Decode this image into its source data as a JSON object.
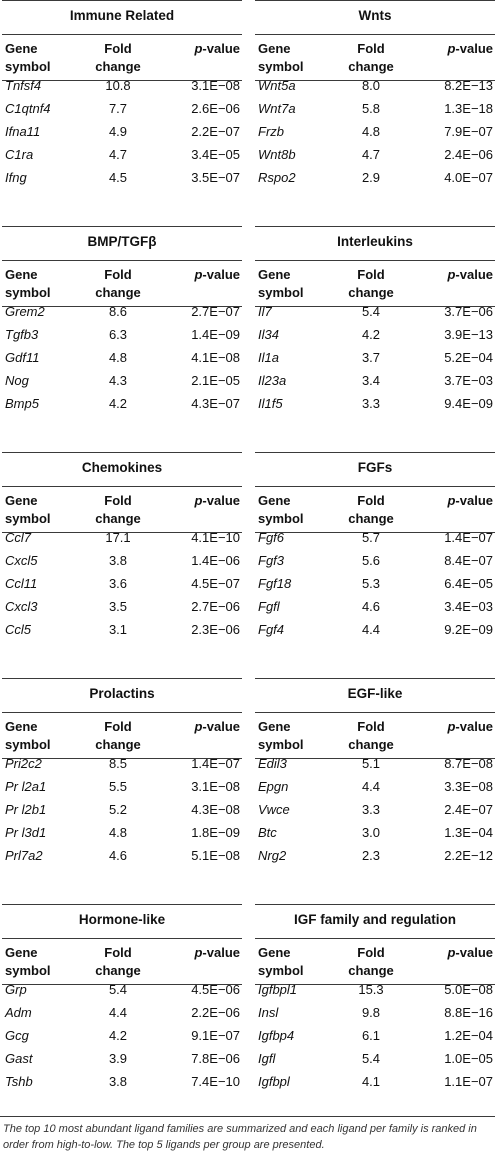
{
  "headers": {
    "gene": [
      "Gene",
      "symbol"
    ],
    "fold": [
      "Fold",
      "change"
    ],
    "p_italic": "p",
    "p_rest": "-value"
  },
  "panels": [
    {
      "title": "Immune Related",
      "rows": [
        {
          "gene": "Tnfsf4",
          "fold": "10.8",
          "p": "3.1E−08"
        },
        {
          "gene": "C1qtnf4",
          "fold": "7.7",
          "p": "2.6E−06"
        },
        {
          "gene": "Ifna11",
          "fold": "4.9",
          "p": "2.2E−07"
        },
        {
          "gene": "C1ra",
          "fold": "4.7",
          "p": "3.4E−05"
        },
        {
          "gene": "Ifng",
          "fold": "4.5",
          "p": "3.5E−07"
        }
      ]
    },
    {
      "title": "Wnts",
      "rows": [
        {
          "gene": "Wnt5a",
          "fold": "8.0",
          "p": "8.2E−13"
        },
        {
          "gene": "Wnt7a",
          "fold": "5.8",
          "p": "1.3E−18"
        },
        {
          "gene": "Frzb",
          "fold": "4.8",
          "p": "7.9E−07"
        },
        {
          "gene": "Wnt8b",
          "fold": "4.7",
          "p": "2.4E−06"
        },
        {
          "gene": "Rspo2",
          "fold": "2.9",
          "p": "4.0E−07"
        }
      ]
    },
    {
      "title": "BMP/TGFβ",
      "rows": [
        {
          "gene": "Grem2",
          "fold": "8.6",
          "p": "2.7E−07"
        },
        {
          "gene": "Tgfb3",
          "fold": "6.3",
          "p": "1.4E−09"
        },
        {
          "gene": "Gdf11",
          "fold": "4.8",
          "p": "4.1E−08"
        },
        {
          "gene": "Nog",
          "fold": "4.3",
          "p": "2.1E−05"
        },
        {
          "gene": "Bmp5",
          "fold": "4.2",
          "p": "4.3E−07"
        }
      ]
    },
    {
      "title": "Interleukins",
      "rows": [
        {
          "gene": "Il7",
          "fold": "5.4",
          "p": "3.7E−06"
        },
        {
          "gene": "Il34",
          "fold": "4.2",
          "p": "3.9E−13"
        },
        {
          "gene": "Il1a",
          "fold": "3.7",
          "p": "5.2E−04"
        },
        {
          "gene": "Il23a",
          "fold": "3.4",
          "p": "3.7E−03"
        },
        {
          "gene": "Il1f5",
          "fold": "3.3",
          "p": "9.4E−09"
        }
      ]
    },
    {
      "title": "Chemokines",
      "rows": [
        {
          "gene": "Ccl7",
          "fold": "17.1",
          "p": "4.1E−10"
        },
        {
          "gene": "Cxcl5",
          "fold": "3.8",
          "p": "1.4E−06"
        },
        {
          "gene": "Ccl11",
          "fold": "3.6",
          "p": "4.5E−07"
        },
        {
          "gene": "Cxcl3",
          "fold": "3.5",
          "p": "2.7E−06"
        },
        {
          "gene": "Ccl5",
          "fold": "3.1",
          "p": "2.3E−06"
        }
      ]
    },
    {
      "title": "FGFs",
      "rows": [
        {
          "gene": "Fgf6",
          "fold": "5.7",
          "p": "1.4E−07"
        },
        {
          "gene": "Fgf3",
          "fold": "5.6",
          "p": "8.4E−07"
        },
        {
          "gene": "Fgf18",
          "fold": "5.3",
          "p": "6.4E−05"
        },
        {
          "gene": "Fgfl",
          "fold": "4.6",
          "p": "3.4E−03"
        },
        {
          "gene": "Fgf4",
          "fold": "4.4",
          "p": "9.2E−09"
        }
      ]
    },
    {
      "title": "Prolactins",
      "rows": [
        {
          "gene": "Pri2c2",
          "fold": "8.5",
          "p": "1.4E−07"
        },
        {
          "gene": "Pr l2a1",
          "fold": "5.5",
          "p": "3.1E−08"
        },
        {
          "gene": "Pr l2b1",
          "fold": "5.2",
          "p": "4.3E−08"
        },
        {
          "gene": "Pr l3d1",
          "fold": "4.8",
          "p": "1.8E−09"
        },
        {
          "gene": "Prl7a2",
          "fold": "4.6",
          "p": "5.1E−08"
        }
      ]
    },
    {
      "title": "EGF-like",
      "rows": [
        {
          "gene": "Edil3",
          "fold": "5.1",
          "p": "8.7E−08"
        },
        {
          "gene": "Epgn",
          "fold": "4.4",
          "p": "3.3E−08"
        },
        {
          "gene": "Vwce",
          "fold": "3.3",
          "p": "2.4E−07"
        },
        {
          "gene": "Btc",
          "fold": "3.0",
          "p": "1.3E−04"
        },
        {
          "gene": "Nrg2",
          "fold": "2.3",
          "p": "2.2E−12"
        }
      ]
    },
    {
      "title": "Hormone-like",
      "rows": [
        {
          "gene": "Grp",
          "fold": "5.4",
          "p": "4.5E−06"
        },
        {
          "gene": "Adm",
          "fold": "4.4",
          "p": "2.2E−06"
        },
        {
          "gene": "Gcg",
          "fold": "4.2",
          "p": "9.1E−07"
        },
        {
          "gene": "Gast",
          "fold": "3.9",
          "p": "7.8E−06"
        },
        {
          "gene": "Tshb",
          "fold": "3.8",
          "p": "7.4E−10"
        }
      ]
    },
    {
      "title": "IGF family and regulation",
      "rows": [
        {
          "gene": "Igfbpl1",
          "fold": "15.3",
          "p": "5.0E−08"
        },
        {
          "gene": "Insl",
          "fold": "9.8",
          "p": "8.8E−16"
        },
        {
          "gene": "Igfbp4",
          "fold": "6.1",
          "p": "1.2E−04"
        },
        {
          "gene": "Igfl",
          "fold": "5.4",
          "p": "1.0E−05"
        },
        {
          "gene": "Igfbpl",
          "fold": "4.1",
          "p": "1.1E−07"
        }
      ]
    }
  ],
  "caption": "The top 10 most abundant ligand families are summarized and each ligand per family is ranked in order from high-to-low. The top 5 ligands per group are presented."
}
